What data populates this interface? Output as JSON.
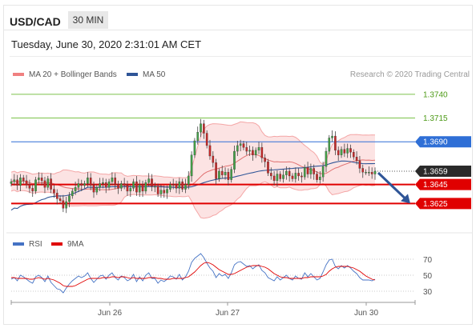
{
  "header": {
    "pair": "USD/CAD",
    "timeframe": "30 MIN"
  },
  "datetime": "Tuesday, June 30, 2020 2:31:01 AM CET",
  "legend": {
    "items": [
      {
        "label": "MA 20 + Bollinger Bands",
        "color": "#f08080"
      },
      {
        "label": "MA 50",
        "color": "#2f5597"
      }
    ],
    "credit": "Research © 2020 Trading Central"
  },
  "rsi_legend": {
    "items": [
      {
        "label": "RSI",
        "color": "#4472c4"
      },
      {
        "label": "9MA",
        "color": "#e00000"
      }
    ]
  },
  "chart_data": [
    {
      "type": "candlestick",
      "title": "",
      "x_ticks": [
        "Jun 26",
        "Jun 27",
        "Jun 30"
      ],
      "ylim": [
        1.3595,
        1.3755
      ],
      "levels": [
        {
          "value": "1.3740",
          "kind": "resistance",
          "color": "#7cc24a",
          "label_color": "#4c9a16",
          "label_bg": ""
        },
        {
          "value": "1.3715",
          "kind": "resistance",
          "color": "#7cc24a",
          "label_color": "#4c9a16",
          "label_bg": ""
        },
        {
          "value": "1.3690",
          "kind": "pivot",
          "color": "#2f6fd6",
          "label_color": "#ffffff",
          "label_bg": "#2f6fd6"
        },
        {
          "value": "1.3659",
          "kind": "last",
          "color": "#333333",
          "label_color": "#ffffff",
          "label_bg": "#2a2a2a"
        },
        {
          "value": "1.3645",
          "kind": "support",
          "color": "#e00000",
          "label_color": "#ffffff",
          "label_bg": "#e00000"
        },
        {
          "value": "1.3625",
          "kind": "support",
          "color": "#e00000",
          "label_color": "#ffffff",
          "label_bg": "#e00000"
        }
      ],
      "price_series": {
        "name": "USD/CAD",
        "close": [
          1.3648,
          1.365,
          1.3644,
          1.3652,
          1.3649,
          1.3645,
          1.3641,
          1.3638,
          1.365,
          1.3652,
          1.3649,
          1.3642,
          1.3651,
          1.364,
          1.3636,
          1.363,
          1.3628,
          1.362,
          1.3627,
          1.3633,
          1.3638,
          1.3642,
          1.3646,
          1.3644,
          1.3646,
          1.3652,
          1.3644,
          1.3637,
          1.3642,
          1.3646,
          1.3647,
          1.3642,
          1.3648,
          1.3652,
          1.3645,
          1.3641,
          1.3646,
          1.3644,
          1.3638,
          1.3641,
          1.3648,
          1.3637,
          1.3645,
          1.3638,
          1.3647,
          1.3651,
          1.3643,
          1.3643,
          1.3635,
          1.3639,
          1.3636,
          1.364,
          1.3645,
          1.3644,
          1.3641,
          1.3648,
          1.364,
          1.3645,
          1.3654,
          1.3676,
          1.3691,
          1.37,
          1.3709,
          1.3699,
          1.3686,
          1.3675,
          1.3668,
          1.3651,
          1.3659,
          1.3655,
          1.3658,
          1.365,
          1.3661,
          1.368,
          1.3686,
          1.3688,
          1.3684,
          1.368,
          1.3681,
          1.3676,
          1.3681,
          1.3684,
          1.3673,
          1.3669,
          1.3657,
          1.3654,
          1.3649,
          1.3656,
          1.3651,
          1.3655,
          1.3659,
          1.3654,
          1.3651,
          1.3657,
          1.3654,
          1.3653,
          1.3663,
          1.3656,
          1.3662,
          1.3656,
          1.365,
          1.3653,
          1.3664,
          1.368,
          1.3694,
          1.3696,
          1.3681,
          1.3676,
          1.3682,
          1.3678,
          1.3683,
          1.3679,
          1.3674,
          1.367,
          1.3662,
          1.3658,
          1.3658,
          1.3658,
          1.3656,
          1.3659
        ]
      },
      "ma50_series": {
        "name": "MA 50"
      },
      "bollinger": {
        "name": "MA 20 + Bollinger Bands"
      },
      "forecast_arrow": {
        "from": "1.3659",
        "to": "1.3625"
      }
    },
    {
      "type": "line",
      "title": "RSI",
      "levels": [
        "70",
        "50",
        "30"
      ],
      "ylim": [
        20,
        80
      ],
      "series": [
        {
          "name": "RSI",
          "values": [
            45,
            47,
            43,
            50,
            48,
            45,
            42,
            40,
            48,
            50,
            47,
            42,
            49,
            41,
            37,
            33,
            32,
            28,
            34,
            39,
            43,
            46,
            49,
            47,
            49,
            53,
            46,
            41,
            45,
            49,
            50,
            45,
            50,
            53,
            47,
            44,
            49,
            47,
            43,
            45,
            51,
            42,
            48,
            43,
            50,
            53,
            46,
            46,
            40,
            44,
            42,
            45,
            49,
            48,
            45,
            51,
            44,
            48,
            55,
            66,
            71,
            74,
            77,
            72,
            65,
            59,
            55,
            47,
            52,
            49,
            51,
            46,
            53,
            63,
            66,
            67,
            64,
            61,
            62,
            58,
            61,
            63,
            56,
            53,
            47,
            45,
            43,
            48,
            44,
            47,
            50,
            46,
            44,
            49,
            46,
            45,
            53,
            48,
            52,
            48,
            44,
            46,
            54,
            63,
            69,
            70,
            61,
            58,
            62,
            59,
            62,
            59,
            55,
            52,
            47,
            44,
            44,
            44,
            43,
            45
          ]
        },
        {
          "name": "9MA",
          "values": [
            47,
            47,
            46,
            46,
            46,
            46,
            45,
            45,
            46,
            47,
            46,
            45,
            46,
            45,
            44,
            42,
            40,
            37,
            36,
            36,
            36,
            37,
            39,
            41,
            43,
            45,
            46,
            46,
            46,
            46,
            47,
            47,
            47,
            48,
            48,
            47,
            48,
            48,
            47,
            46,
            47,
            46,
            46,
            46,
            46,
            47,
            47,
            47,
            46,
            46,
            45,
            45,
            45,
            46,
            46,
            46,
            46,
            47,
            48,
            51,
            54,
            58,
            62,
            65,
            66,
            65,
            63,
            60,
            57,
            55,
            53,
            51,
            51,
            52,
            54,
            56,
            58,
            60,
            61,
            62,
            62,
            62,
            61,
            60,
            58,
            55,
            52,
            50,
            48,
            47,
            47,
            46,
            46,
            46,
            46,
            46,
            47,
            47,
            48,
            48,
            48,
            48,
            49,
            51,
            55,
            58,
            60,
            61,
            61,
            61,
            61,
            60,
            59,
            57,
            55,
            52,
            49,
            47,
            45,
            44
          ]
        }
      ]
    }
  ]
}
